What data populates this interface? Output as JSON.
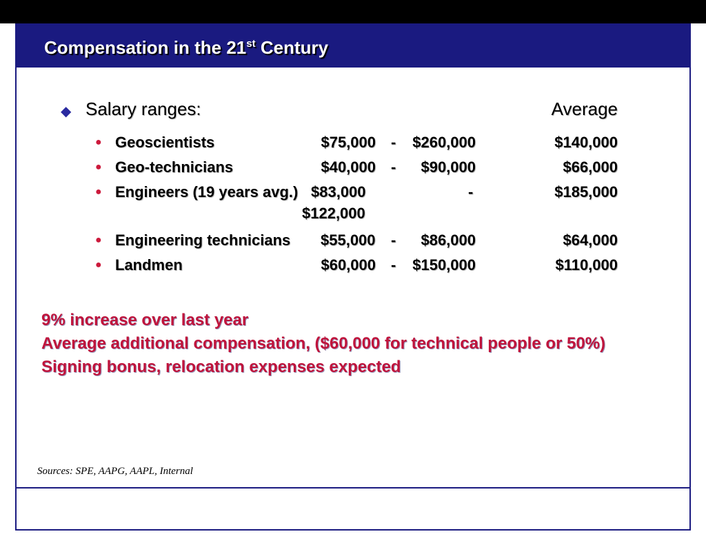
{
  "slide": {
    "title_prefix": "Compensation in the 21",
    "title_sup": "st",
    "title_suffix": " Century"
  },
  "salary": {
    "heading": "Salary ranges:",
    "average_heading": "Average",
    "rows": [
      {
        "occupation": "Geoscientists",
        "low": "$75,000",
        "dash": "-",
        "high": "$260,000",
        "average": "$140,000"
      },
      {
        "occupation": "Geo-technicians",
        "low": "$40,000",
        "dash": "-",
        "high": "$90,000",
        "average": "$66,000"
      },
      {
        "occupation": "Engineers (19 years avg.)",
        "low": "$83,000",
        "dash": "-",
        "high": "$122,000",
        "average": "$185,000"
      },
      {
        "occupation": "Engineering technicians",
        "low": "$55,000",
        "dash": "-",
        "high": "$86,000",
        "average": "$64,000"
      },
      {
        "occupation": "Landmen",
        "low": "$60,000",
        "dash": "-",
        "high": "$150,000",
        "average": "$110,000"
      }
    ]
  },
  "notes": [
    "9% increase over last year",
    "Average additional compensation, ($60,000 for technical people or 50%)",
    "Signing bonus, relocation expenses expected"
  ],
  "sources": "Sources: SPE, AAPG, AAPL, Internal",
  "icons": {
    "bullet_level1": "diamond-bullet-icon",
    "bullet_level2": "circle-bullet-icon"
  },
  "colors": {
    "title_band": "#1a1a80",
    "notes_text": "#c0143c",
    "bullet_dot": "#cc1a3c"
  }
}
